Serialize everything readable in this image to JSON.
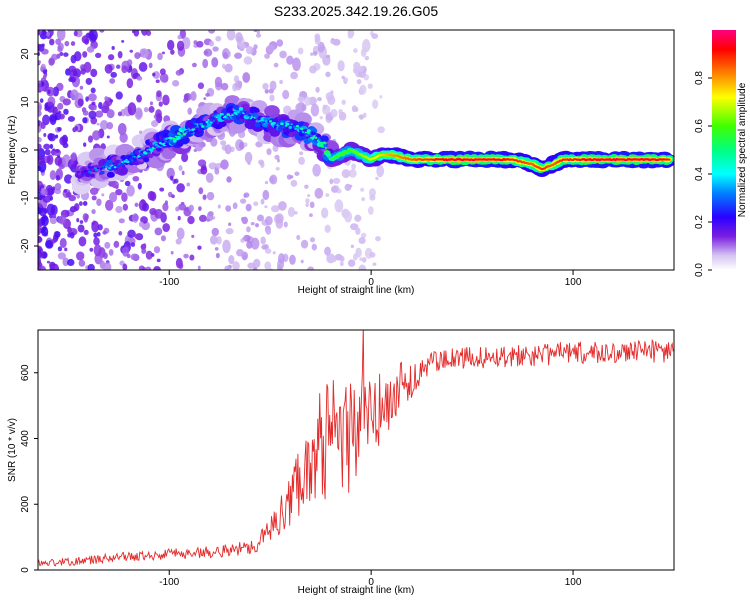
{
  "title": "S233.2025.342.19.26.G05",
  "chart_data": [
    {
      "type": "heatmap",
      "id": "spectrum",
      "xlabel": "Height of straight line (km)",
      "ylabel": "Frequency (Hz)",
      "xlim": [
        -165,
        150
      ],
      "ylim": [
        -25,
        25
      ],
      "x_ticks": [
        {
          "value": -100,
          "label": "-100"
        },
        {
          "value": 0,
          "label": "0"
        },
        {
          "value": 100,
          "label": "100"
        }
      ],
      "y_ticks": [
        {
          "value": 20,
          "label": "20"
        },
        {
          "value": 10,
          "label": "10"
        },
        {
          "value": 0,
          "label": "0"
        },
        {
          "value": -10,
          "label": "-10"
        },
        {
          "value": -20,
          "label": "-20"
        }
      ],
      "peak_track": {
        "x": [
          -145,
          -135,
          -125,
          -115,
          -105,
          -95,
          -85,
          -75,
          -65,
          -55,
          -45,
          -38,
          -30,
          -25,
          -20,
          -15,
          -10,
          -5,
          0,
          5,
          10,
          20,
          30,
          40,
          50,
          60,
          70,
          80,
          85,
          90,
          95,
          100,
          110,
          120,
          130,
          140,
          148
        ],
        "freq": [
          -5,
          -4,
          -3,
          -1,
          1,
          3,
          5,
          7,
          8,
          6,
          5,
          5,
          3,
          2,
          -2,
          -1,
          0,
          -1,
          -2,
          -1,
          -1,
          -2,
          -2,
          -2,
          -2,
          -2,
          -2,
          -3,
          -4,
          -3,
          -2,
          -2,
          -2,
          -2,
          -2,
          -2,
          -2
        ],
        "amplitude": [
          0.2,
          0.25,
          0.3,
          0.3,
          0.35,
          0.4,
          0.35,
          0.35,
          0.35,
          0.35,
          0.4,
          0.35,
          0.4,
          0.45,
          0.55,
          0.6,
          0.6,
          0.65,
          0.7,
          0.75,
          0.8,
          0.85,
          0.9,
          0.95,
          0.95,
          0.95,
          0.9,
          0.85,
          0.9,
          0.85,
          0.9,
          0.9,
          0.95,
          0.95,
          0.95,
          0.95,
          0.9
        ]
      },
      "colorbar": {
        "label": "Normalized spectral amplitude",
        "range": [
          0,
          1
        ],
        "ticks": [
          {
            "value": 0.0,
            "label": "0.0"
          },
          {
            "value": 0.2,
            "label": "0.2"
          },
          {
            "value": 0.4,
            "label": "0.4"
          },
          {
            "value": 0.6,
            "label": "0.6"
          },
          {
            "value": 0.8,
            "label": "0.8"
          }
        ]
      }
    },
    {
      "type": "line",
      "id": "snr",
      "xlabel": "Height of straight line (km)",
      "ylabel": "SNR (10 * v/v)",
      "xlim": [
        -165,
        150
      ],
      "ylim": [
        0,
        730
      ],
      "x_ticks": [
        {
          "value": -100,
          "label": "-100"
        },
        {
          "value": 0,
          "label": "0"
        },
        {
          "value": 100,
          "label": "100"
        }
      ],
      "y_ticks": [
        {
          "value": 0,
          "label": "0"
        },
        {
          "value": 200,
          "label": "200"
        },
        {
          "value": 400,
          "label": "400"
        },
        {
          "value": 600,
          "label": "600"
        }
      ],
      "series": [
        {
          "name": "SNR",
          "color": "#e32b2b",
          "x": [
            -165,
            -150,
            -130,
            -110,
            -95,
            -80,
            -70,
            -60,
            -55,
            -50,
            -45,
            -40,
            -35,
            -30,
            -25,
            -20,
            -15,
            -10,
            -5,
            0,
            5,
            10,
            15,
            20,
            25,
            30,
            40,
            60,
            80,
            100,
            120,
            140,
            150
          ],
          "values": [
            20,
            25,
            35,
            45,
            50,
            55,
            60,
            70,
            90,
            120,
            160,
            220,
            290,
            340,
            380,
            400,
            390,
            420,
            450,
            470,
            480,
            520,
            560,
            580,
            610,
            630,
            640,
            650,
            655,
            660,
            662,
            665,
            665
          ],
          "noise": [
            12,
            12,
            14,
            16,
            18,
            18,
            20,
            24,
            30,
            40,
            60,
            90,
            120,
            150,
            170,
            180,
            200,
            180,
            160,
            140,
            120,
            100,
            80,
            60,
            40,
            35,
            35,
            35,
            35,
            35,
            35,
            35,
            35
          ]
        }
      ]
    }
  ]
}
